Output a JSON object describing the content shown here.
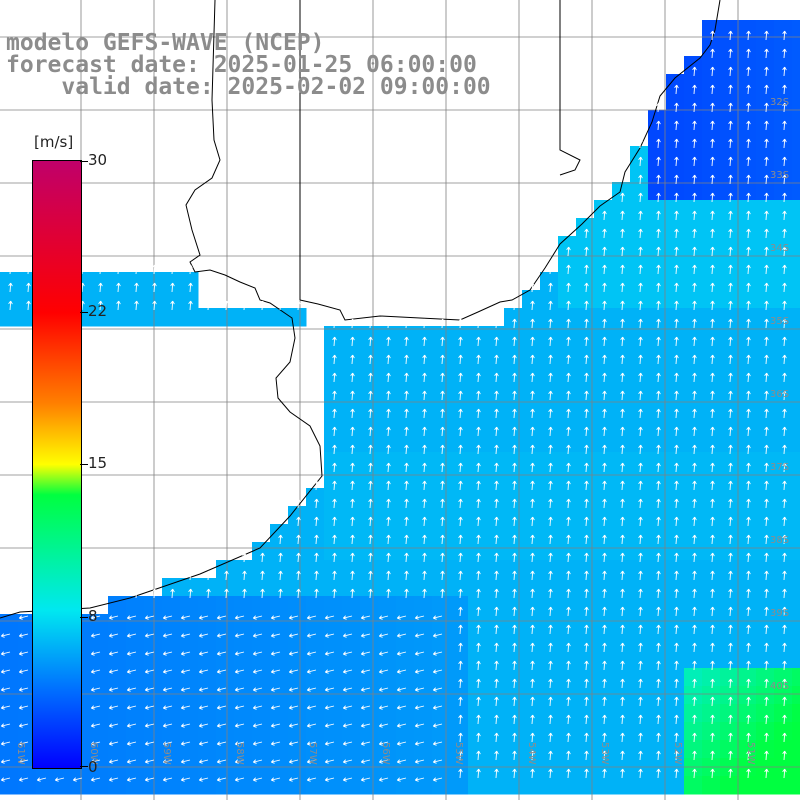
{
  "title": {
    "line1": "modelo GEFS-WAVE (NCEP)",
    "line2": "forecast date: 2025-01-25 06:00:00",
    "line3": "    valid date: 2025-02-02 09:00:00"
  },
  "colorbar": {
    "unit": "[m/s]",
    "ticks": [
      "30",
      "22",
      "15",
      "8",
      "0"
    ],
    "min": 0,
    "max": 30,
    "colors": [
      "#0000ff",
      "#0070ff",
      "#00e8f0",
      "#00ff40",
      "#ffff00",
      "#ff8000",
      "#ff0000",
      "#c0006a"
    ]
  },
  "map": {
    "lat_labels": [
      "32S",
      "33S",
      "34S",
      "35S",
      "36S",
      "37S",
      "38S",
      "39S",
      "40S"
    ],
    "lon_labels": [
      "61W",
      "60W",
      "59W",
      "58W",
      "57W",
      "56W",
      "55W",
      "54W",
      "53W",
      "52W",
      "51W"
    ],
    "land_color": "#ffffff",
    "coast_color": "#000000",
    "grid_color": "#808080"
  }
}
